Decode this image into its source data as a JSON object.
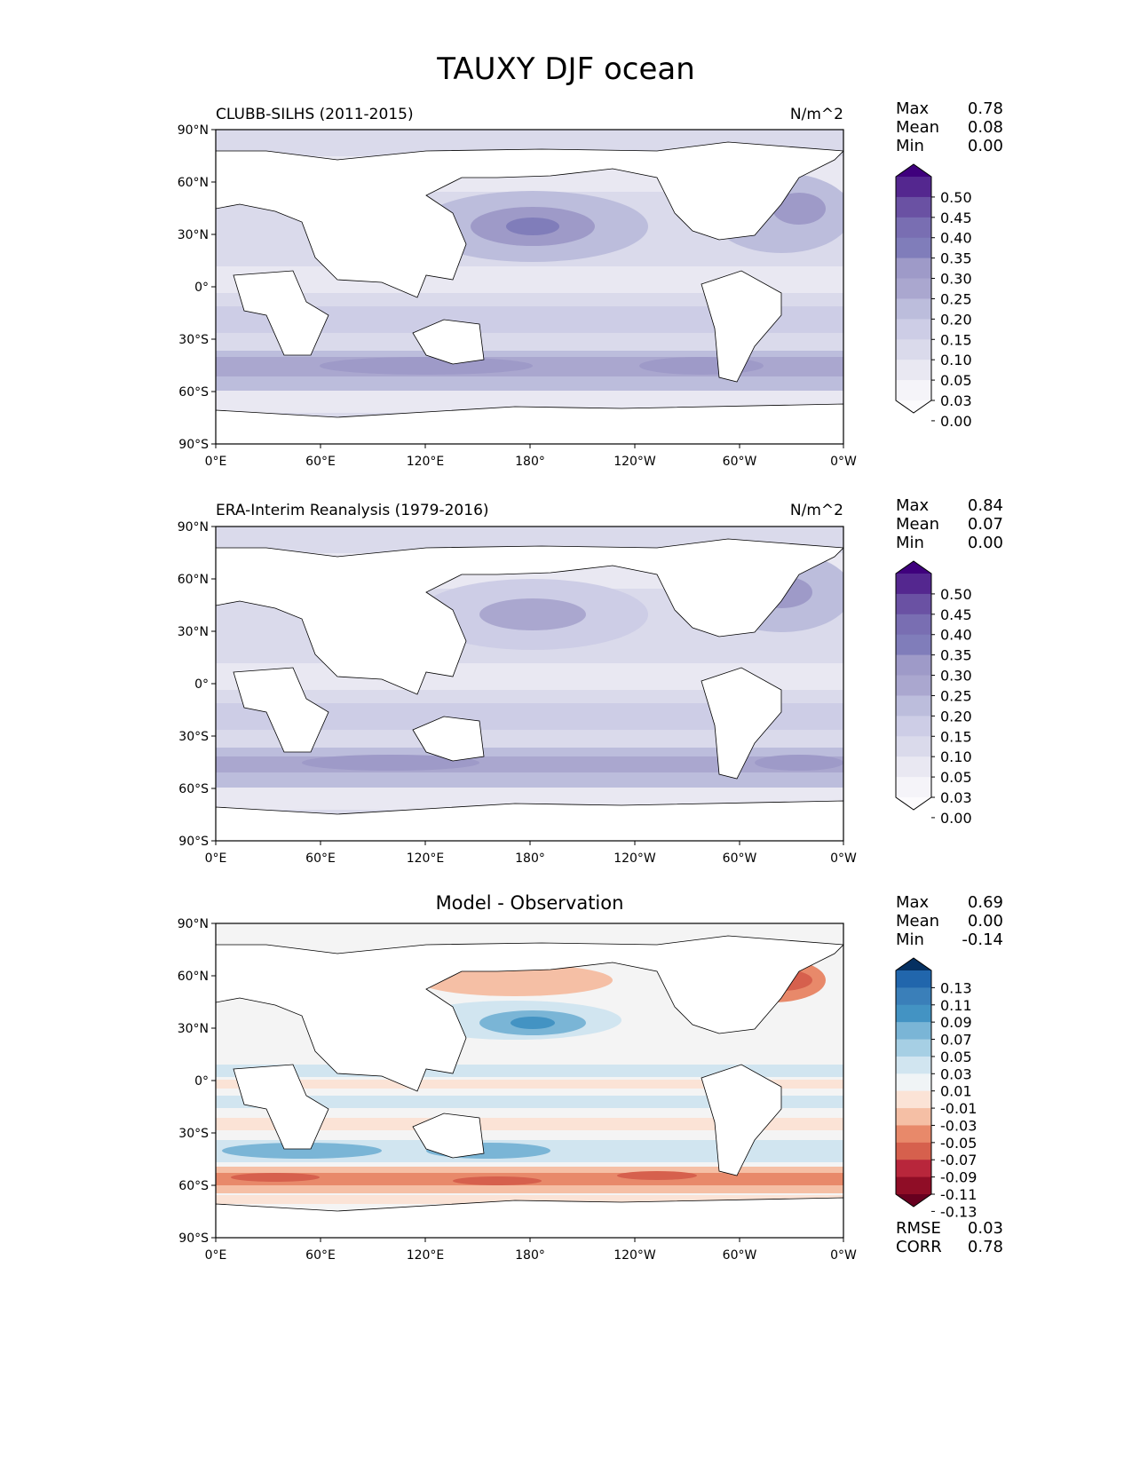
{
  "title": "TAUXY DJF ocean",
  "lon_ticks": [
    "0°E",
    "60°E",
    "120°E",
    "180°",
    "120°W",
    "60°W",
    "0°W"
  ],
  "lat_ticks": [
    "90°N",
    "60°N",
    "30°N",
    "0°",
    "30°S",
    "60°S",
    "90°S"
  ],
  "panels": [
    {
      "title": "CLUBB-SILHS (2011-2015)",
      "units": "N/m^2",
      "stats": [
        {
          "label": "Max",
          "value": "0.78"
        },
        {
          "label": "Mean",
          "value": "0.08"
        },
        {
          "label": "Min",
          "value": "0.00"
        }
      ],
      "colorbar": {
        "labels": [
          "0.50",
          "0.45",
          "0.40",
          "0.35",
          "0.30",
          "0.25",
          "0.20",
          "0.15",
          "0.10",
          "0.05",
          "0.03",
          "0.00"
        ],
        "colors": [
          "#3f007d",
          "#54278f",
          "#6a51a3",
          "#796eb2",
          "#807dba",
          "#9e9ac8",
          "#aaa7cf",
          "#bcbddc",
          "#cdcde6",
          "#dadaeb",
          "#e9e8f2",
          "#f5f4f9",
          "#fcfbfd"
        ]
      },
      "footer_stats": []
    },
    {
      "title": "ERA-Interim Reanalysis (1979-2016)",
      "units": "N/m^2",
      "stats": [
        {
          "label": "Max",
          "value": "0.84"
        },
        {
          "label": "Mean",
          "value": "0.07"
        },
        {
          "label": "Min",
          "value": "0.00"
        }
      ],
      "colorbar": {
        "labels": [
          "0.50",
          "0.45",
          "0.40",
          "0.35",
          "0.30",
          "0.25",
          "0.20",
          "0.15",
          "0.10",
          "0.05",
          "0.03",
          "0.00"
        ],
        "colors": [
          "#3f007d",
          "#54278f",
          "#6a51a3",
          "#796eb2",
          "#807dba",
          "#9e9ac8",
          "#aaa7cf",
          "#bcbddc",
          "#cdcde6",
          "#dadaeb",
          "#e9e8f2",
          "#f5f4f9",
          "#fcfbfd"
        ]
      },
      "footer_stats": []
    },
    {
      "title": "Model - Observation",
      "units": "",
      "stats": [
        {
          "label": "Max",
          "value": "0.69"
        },
        {
          "label": "Mean",
          "value": "0.00"
        },
        {
          "label": "Min",
          "value": "-0.14"
        }
      ],
      "colorbar": {
        "labels": [
          "0.13",
          "0.11",
          "0.09",
          "0.07",
          "0.05",
          "0.03",
          "0.01",
          "-0.01",
          "-0.03",
          "-0.05",
          "-0.07",
          "-0.09",
          "-0.11",
          "-0.13"
        ],
        "colors": [
          "#053061",
          "#2166ac",
          "#3a7fb9",
          "#4393c3",
          "#7ab5d6",
          "#a6cfe4",
          "#d1e5f0",
          "#f0f4f6",
          "#fbe3d6",
          "#f5bfa5",
          "#e8896a",
          "#d6604d",
          "#b8263b",
          "#8f0d26",
          "#67001f"
        ]
      },
      "footer_stats": [
        {
          "label": "RMSE",
          "value": "0.03"
        },
        {
          "label": "CORR",
          "value": "0.78"
        }
      ]
    }
  ]
}
